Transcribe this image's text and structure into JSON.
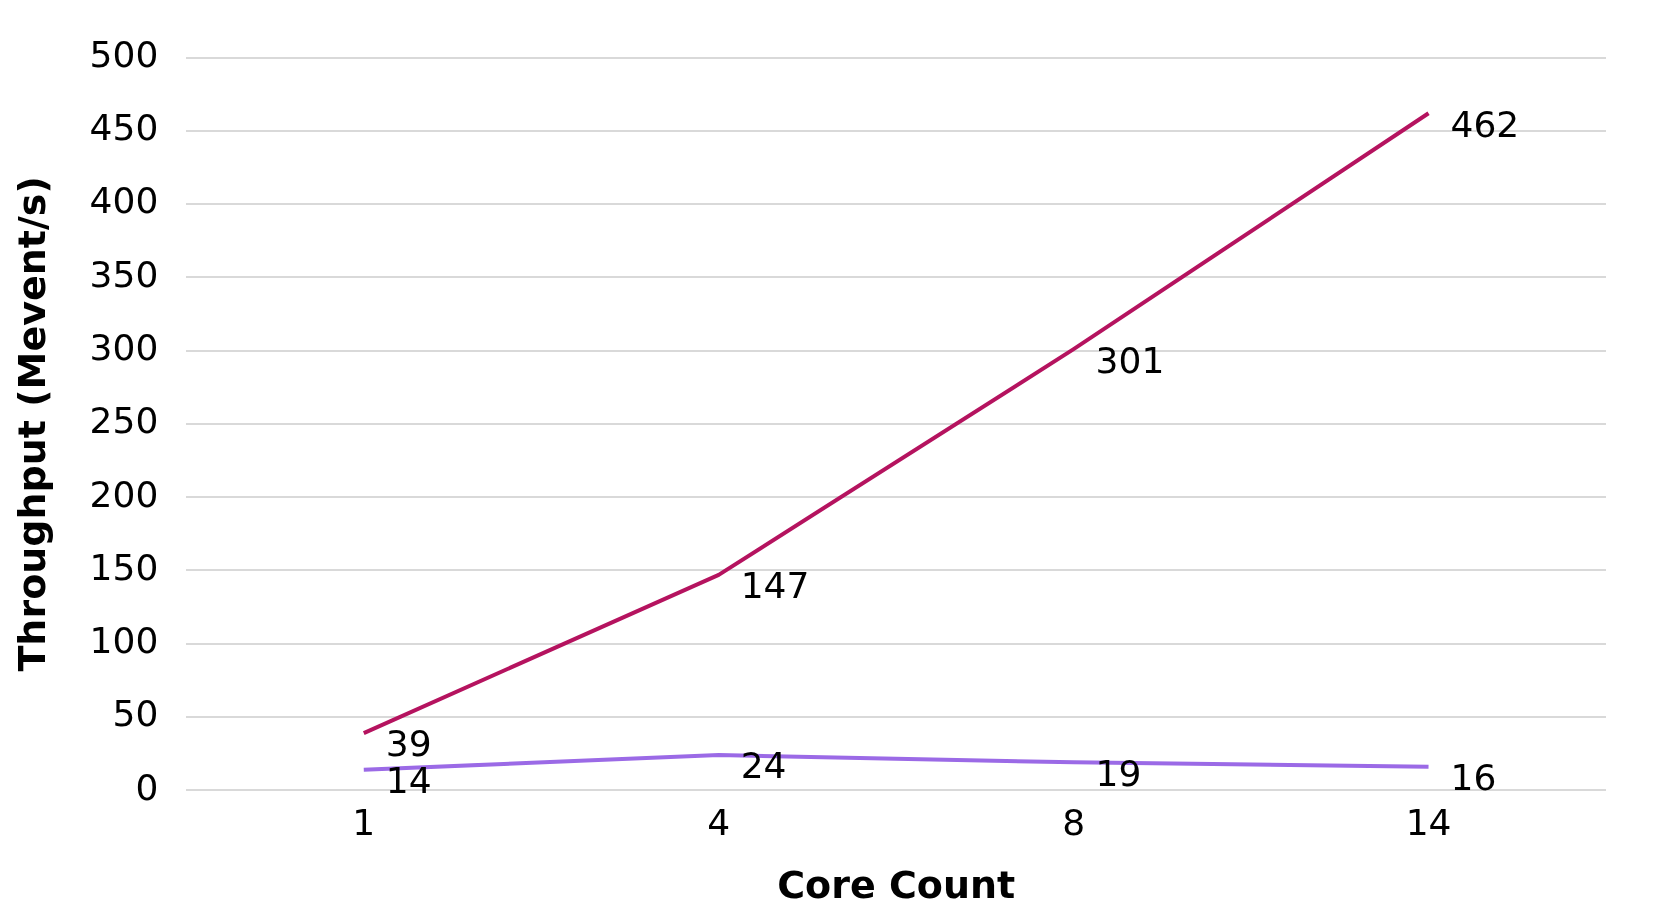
{
  "chart_data": {
    "type": "line",
    "xlabel": "Core Count",
    "ylabel": "Throughput (Mevent/s)",
    "categories": [
      "1",
      "4",
      "8",
      "14"
    ],
    "series": [
      {
        "color": "#b5135f",
        "values": [
          39,
          147,
          301,
          462
        ]
      },
      {
        "color": "#9b6ae6",
        "values": [
          14,
          24,
          19,
          16
        ]
      }
    ],
    "ylim": [
      0,
      500
    ],
    "yticks": [
      0,
      50,
      100,
      150,
      200,
      250,
      300,
      350,
      400,
      450,
      500
    ],
    "grid": "y",
    "legend": false,
    "marker": "none",
    "line_style": "solid",
    "data_labels": true
  }
}
